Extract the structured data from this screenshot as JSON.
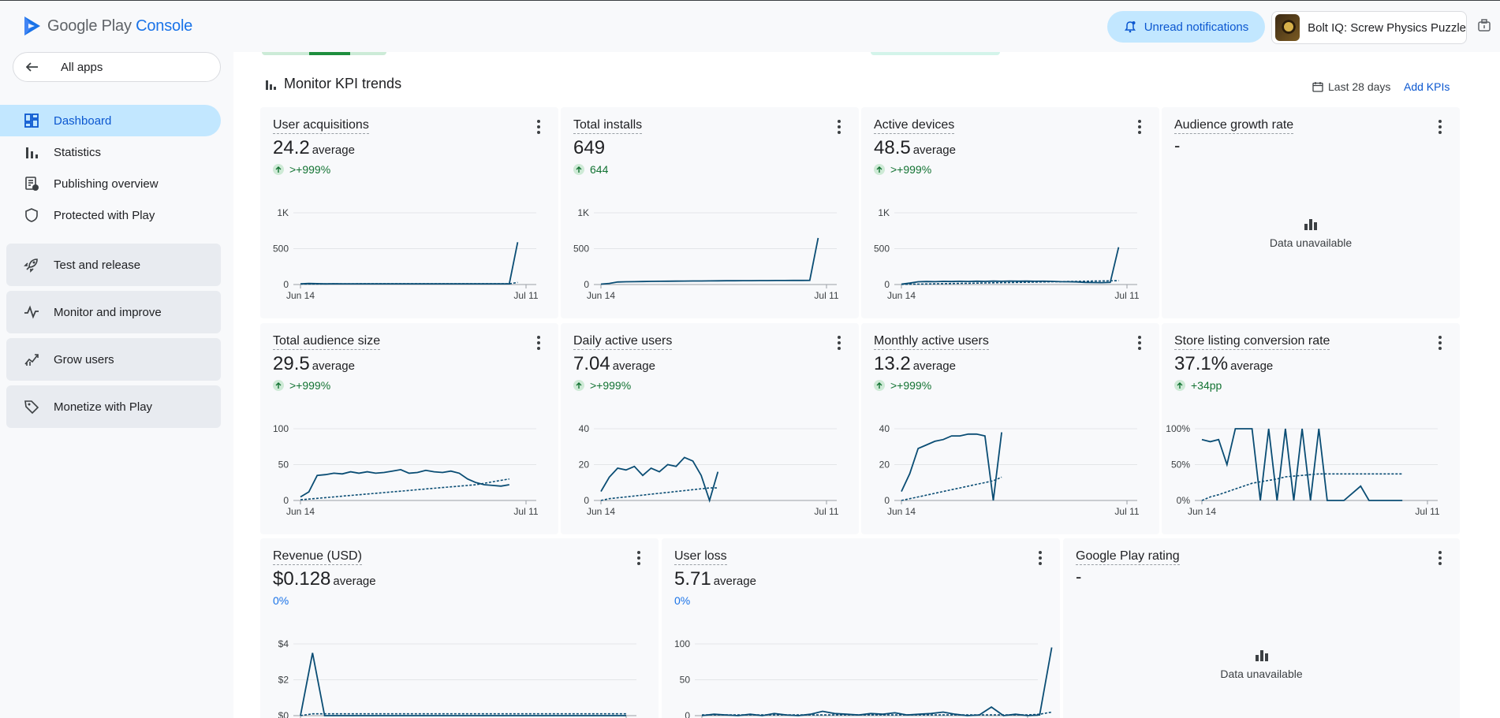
{
  "header": {
    "logo_main": "Google Play",
    "logo_sub": "Console",
    "notifications_label": "Unread notifications",
    "app_name": "Bolt IQ: Screw Physics Puzzle"
  },
  "sidebar": {
    "all_apps": "All apps",
    "items": [
      {
        "label": "Dashboard",
        "icon": "dashboard-icon"
      },
      {
        "label": "Statistics",
        "icon": "bar-chart-icon"
      },
      {
        "label": "Publishing overview",
        "icon": "publishing-icon"
      },
      {
        "label": "Protected with Play",
        "icon": "shield-icon"
      }
    ],
    "groups": [
      {
        "label": "Test and release",
        "icon": "rocket-icon"
      },
      {
        "label": "Monitor and improve",
        "icon": "pulse-icon"
      },
      {
        "label": "Grow users",
        "icon": "grow-icon"
      },
      {
        "label": "Monetize with Play",
        "icon": "tag-icon"
      }
    ]
  },
  "section": {
    "title": "Monitor KPI trends",
    "date_range": "Last 28 days",
    "add_kpis": "Add KPIs"
  },
  "cards": [
    {
      "title": "User acquisitions",
      "value": "24.2",
      "suffix": "average",
      "delta": ">+999%",
      "delta_dir": "up",
      "yticks": [
        "1K",
        "500",
        "0"
      ],
      "ymax": 1000,
      "x_start": "Jun 14",
      "x_end": "Jul 11",
      "series": [
        10,
        14,
        12,
        9,
        11,
        10,
        10,
        10,
        10,
        10,
        10,
        10,
        10,
        10,
        10,
        10,
        10,
        10,
        10,
        10,
        10,
        10,
        10,
        10,
        10,
        10,
        590
      ],
      "dashed": [
        8,
        8,
        8,
        9,
        9,
        9,
        9,
        10,
        10,
        10,
        10,
        10,
        10,
        10,
        10,
        10,
        10,
        10,
        10,
        10,
        10,
        10,
        10,
        10,
        10,
        10,
        30
      ]
    },
    {
      "title": "Total installs",
      "value": "649",
      "suffix": "",
      "delta": "644",
      "delta_dir": "up",
      "yticks": [
        "1K",
        "500",
        "0"
      ],
      "ymax": 1000,
      "x_start": "Jun 14",
      "x_end": "Jul 11",
      "series": [
        5,
        15,
        35,
        38,
        40,
        42,
        44,
        45,
        46,
        47,
        48,
        49,
        50,
        51,
        52,
        53,
        53,
        54,
        54,
        55,
        55,
        56,
        56,
        57,
        57,
        58,
        649
      ],
      "dashed": []
    },
    {
      "title": "Active devices",
      "value": "48.5",
      "suffix": "average",
      "delta": ">+999%",
      "delta_dir": "up",
      "yticks": [
        "1K",
        "500",
        "0"
      ],
      "ymax": 1000,
      "x_start": "Jun 14",
      "x_end": "Jul 11",
      "series": [
        5,
        20,
        38,
        42,
        40,
        44,
        42,
        45,
        43,
        46,
        44,
        47,
        45,
        48,
        46,
        47,
        45,
        46,
        44,
        40,
        38,
        36,
        30,
        28,
        26,
        30,
        520
      ],
      "dashed": [
        2,
        4,
        6,
        8,
        10,
        12,
        14,
        16,
        18,
        20,
        22,
        24,
        26,
        28,
        30,
        32,
        34,
        36,
        38,
        40,
        42,
        44,
        46,
        48,
        50,
        52,
        54
      ]
    },
    {
      "title": "Audience growth rate",
      "value": "-",
      "unavailable": "Data unavailable"
    },
    {
      "title": "Total audience size",
      "value": "29.5",
      "suffix": "average",
      "delta": ">+999%",
      "delta_dir": "up",
      "yticks": [
        "100",
        "50",
        "0"
      ],
      "ymax": 100,
      "x_start": "Jun 14",
      "x_end": "Jul 11",
      "series": [
        5,
        12,
        35,
        36,
        38,
        37,
        40,
        38,
        40,
        38,
        39,
        41,
        43,
        38,
        39,
        42,
        40,
        39,
        41,
        38,
        30,
        25,
        22,
        21,
        20,
        22
      ],
      "dashed": [
        1,
        2,
        3,
        4,
        5,
        6,
        7,
        8,
        9,
        10,
        11,
        12,
        13,
        14,
        15,
        16,
        17,
        18,
        19,
        20,
        21,
        22,
        24,
        26,
        28,
        30
      ]
    },
    {
      "title": "Daily active users",
      "value": "7.04",
      "suffix": "average",
      "delta": ">+999%",
      "delta_dir": "up",
      "yticks": [
        "40",
        "20",
        "0"
      ],
      "ymax": 40,
      "x_start": "Jun 14",
      "x_end": "Jul 11",
      "series": [
        5,
        13,
        18,
        17,
        19,
        14,
        18,
        16,
        20,
        19,
        24,
        22,
        14,
        0,
        16
      ],
      "dashed": [
        0,
        1,
        1.5,
        2,
        2.5,
        3,
        3.5,
        4,
        4.5,
        5,
        5.5,
        6,
        6.5,
        7,
        7
      ]
    },
    {
      "title": "Monthly active users",
      "value": "13.2",
      "suffix": "average",
      "delta": ">+999%",
      "delta_dir": "up",
      "yticks": [
        "40",
        "20",
        "0"
      ],
      "ymax": 40,
      "x_start": "Jun 14",
      "x_end": "Jul 11",
      "series": [
        5,
        15,
        29,
        31,
        33,
        34,
        36,
        36,
        37,
        37,
        36,
        0,
        38
      ],
      "dashed": [
        0,
        1,
        2,
        3,
        4,
        5,
        6,
        7,
        8,
        9,
        10,
        11,
        13
      ]
    },
    {
      "title": "Store listing conversion rate",
      "value": "37.1%",
      "suffix": "average",
      "delta": "+34pp",
      "delta_dir": "up",
      "yticks": [
        "100%",
        "50%",
        "0%"
      ],
      "ymax": 100,
      "x_start": "Jun 14",
      "x_end": "Jul 11",
      "series": [
        85,
        82,
        85,
        50,
        100,
        100,
        100,
        0,
        100,
        0,
        100,
        0,
        100,
        0,
        100,
        0,
        0,
        0,
        10,
        20,
        0,
        0,
        0,
        0,
        0
      ],
      "dashed": [
        0,
        5,
        8,
        12,
        16,
        20,
        24,
        26,
        28,
        30,
        33,
        34,
        35,
        36,
        37,
        37,
        37,
        37,
        37,
        37,
        37,
        37,
        37,
        37,
        37
      ]
    },
    {
      "title": "Revenue (USD)",
      "value": "$0.128",
      "suffix": "average",
      "delta": "0%",
      "delta_dir": "neutral",
      "yticks": [
        "$4",
        "$2",
        "$0"
      ],
      "ymax": 4,
      "x_start": "",
      "x_end": "",
      "series": [
        0,
        3.5,
        0,
        0,
        0,
        0,
        0,
        0,
        0,
        0,
        0,
        0,
        0,
        0,
        0,
        0,
        0,
        0,
        0,
        0,
        0,
        0,
        0,
        0,
        0,
        0,
        0,
        0
      ],
      "dashed": [
        0,
        0.1,
        0.1,
        0.1,
        0.1,
        0.1,
        0.1,
        0.1,
        0.1,
        0.1,
        0.1,
        0.1,
        0.1,
        0.1,
        0.1,
        0.1,
        0.1,
        0.1,
        0.1,
        0.1,
        0.1,
        0.1,
        0.1,
        0.1,
        0.1,
        0.1,
        0.1,
        0.1
      ]
    },
    {
      "title": "User loss",
      "value": "5.71",
      "suffix": "average",
      "delta": "0%",
      "delta_dir": "neutral",
      "yticks": [
        "100",
        "50",
        "0"
      ],
      "ymax": 100,
      "x_start": "",
      "x_end": "",
      "series": [
        0,
        2,
        1,
        0,
        2,
        0,
        3,
        1,
        0,
        2,
        6,
        3,
        2,
        1,
        3,
        2,
        4,
        1,
        2,
        3,
        5,
        2,
        0,
        1,
        12,
        0,
        2,
        0,
        1,
        95
      ],
      "dashed": [
        1,
        1,
        1,
        1,
        1,
        1,
        1,
        1,
        1,
        1,
        1,
        1,
        1,
        1,
        1,
        1,
        1,
        1,
        1,
        1,
        1,
        1,
        1,
        1,
        1,
        1,
        1,
        1,
        2,
        5
      ]
    },
    {
      "title": "Google Play rating",
      "value": "-",
      "unavailable": "Data unavailable"
    }
  ],
  "colors": {
    "accent": "#0b57d0",
    "chart_line": "#0a4d74",
    "active_bg": "#c2e7ff"
  }
}
